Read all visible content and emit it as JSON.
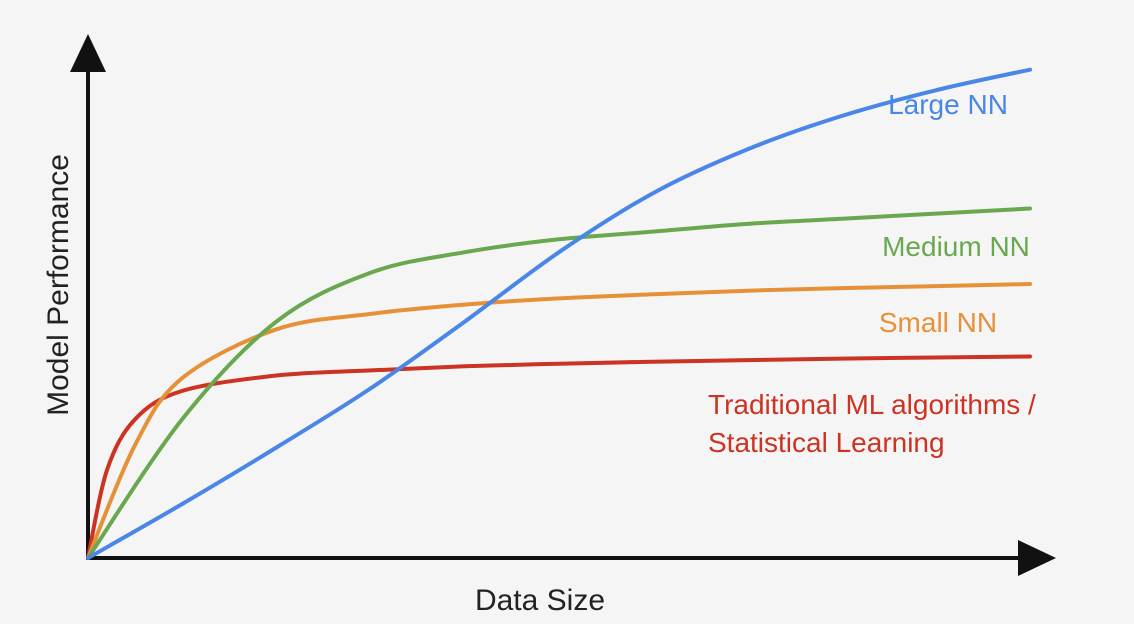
{
  "chart_data": {
    "type": "line",
    "xlabel": "Data Size",
    "ylabel": "Model Performance",
    "xlim": [
      0,
      100
    ],
    "ylim": [
      0,
      100
    ],
    "grid": false,
    "legend": "inline labels",
    "series": [
      {
        "name": "Large NN",
        "color": "#4a86e8",
        "x": [
          0,
          10,
          20,
          30,
          40,
          50,
          60,
          70,
          80,
          90,
          100
        ],
        "y": [
          0,
          10.5,
          21.5,
          33,
          46,
          59.5,
          71,
          79.5,
          86,
          91,
          95
        ]
      },
      {
        "name": "Medium NN",
        "color": "#6aa84f",
        "x": [
          0,
          10,
          20,
          30,
          40,
          50,
          60,
          70,
          80,
          90,
          100
        ],
        "y": [
          0,
          27,
          46,
          55.5,
          59.5,
          62,
          63.5,
          65,
          66,
          67,
          68
        ]
      },
      {
        "name": "Small NN",
        "color": "#e69138",
        "x": [
          0,
          5,
          10,
          20,
          30,
          40,
          50,
          60,
          70,
          80,
          90,
          100
        ],
        "y": [
          0,
          22,
          35,
          44.5,
          47.5,
          49.3,
          50.5,
          51.3,
          52,
          52.5,
          52.9,
          53.3
        ]
      },
      {
        "name": "Traditional ML algorithms / Statistical Learning",
        "label_lines": [
          "Traditional ML algorithms /",
          "Statistical Learning"
        ],
        "color": "#cc3322",
        "x": [
          0,
          2,
          5,
          10,
          20,
          30,
          40,
          50,
          60,
          70,
          80,
          90,
          100
        ],
        "y": [
          0,
          17,
          27,
          32.5,
          35.5,
          36.5,
          37.3,
          37.8,
          38.2,
          38.5,
          38.8,
          39,
          39.2
        ]
      }
    ]
  }
}
